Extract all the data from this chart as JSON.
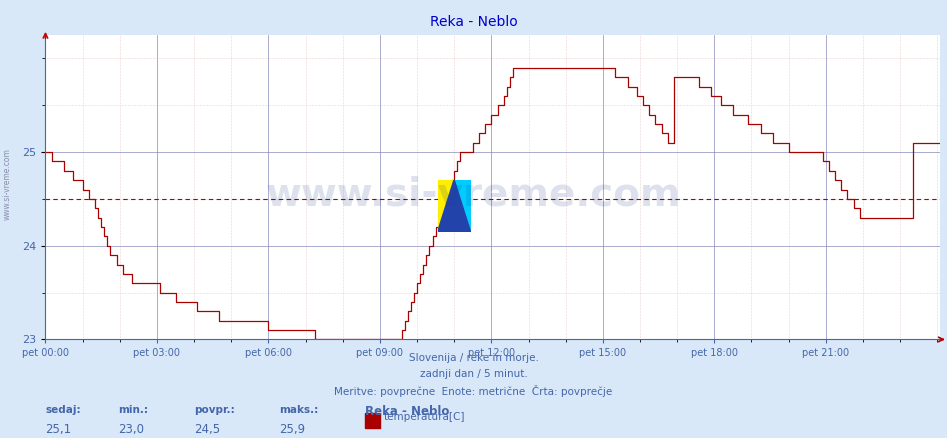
{
  "title": "Reka - Neblo",
  "bg_color": "#d8e8f8",
  "plot_bg_color": "#ffffff",
  "line_color": "#aa0000",
  "grid_color_major": "#8888bb",
  "grid_color_minor": "#ddaaaa",
  "avg_line_color": "#aa0000",
  "avg_value": 24.5,
  "y_min": 23.0,
  "y_max": 26.0,
  "y_ticks": [
    23,
    24,
    25
  ],
  "x_tick_labels": [
    "pet 00:00",
    "pet 03:00",
    "pet 06:00",
    "pet 09:00",
    "pet 12:00",
    "pet 15:00",
    "pet 18:00",
    "pet 21:00"
  ],
  "x_tick_positions": [
    0,
    36,
    72,
    108,
    144,
    180,
    216,
    252
  ],
  "footer_line1": "Slovenija / reke in morje.",
  "footer_line2": "zadnji dan / 5 minut.",
  "footer_line3": "Meritve: povprečne  Enote: metrične  Črta: povprečje",
  "footer_color": "#4466aa",
  "stats_labels": [
    "sedaj:",
    "min.:",
    "povpr.:",
    "maks.:"
  ],
  "stats_values": [
    "25,1",
    "23,0",
    "24,5",
    "25,9"
  ],
  "legend_title": "Reka - Neblo",
  "legend_label": "temperatura[C]",
  "legend_color": "#aa0000",
  "watermark_text": "www.si-vreme.com",
  "sidebar_text": "www.si-vreme.com",
  "n_points": 288,
  "temperatures": [
    25.0,
    25.0,
    24.9,
    24.9,
    24.9,
    24.9,
    24.8,
    24.8,
    24.8,
    24.7,
    24.7,
    24.7,
    24.6,
    24.6,
    24.5,
    24.5,
    24.4,
    24.3,
    24.2,
    24.1,
    24.0,
    23.9,
    23.9,
    23.8,
    23.8,
    23.7,
    23.7,
    23.7,
    23.6,
    23.6,
    23.6,
    23.6,
    23.6,
    23.6,
    23.6,
    23.6,
    23.6,
    23.5,
    23.5,
    23.5,
    23.5,
    23.5,
    23.4,
    23.4,
    23.4,
    23.4,
    23.4,
    23.4,
    23.4,
    23.3,
    23.3,
    23.3,
    23.3,
    23.3,
    23.3,
    23.3,
    23.2,
    23.2,
    23.2,
    23.2,
    23.2,
    23.2,
    23.2,
    23.2,
    23.2,
    23.2,
    23.2,
    23.2,
    23.2,
    23.2,
    23.2,
    23.2,
    23.1,
    23.1,
    23.1,
    23.1,
    23.1,
    23.1,
    23.1,
    23.1,
    23.1,
    23.1,
    23.1,
    23.1,
    23.1,
    23.1,
    23.1,
    23.0,
    23.0,
    23.0,
    23.0,
    23.0,
    23.0,
    23.0,
    23.0,
    23.0,
    23.0,
    23.0,
    23.0,
    23.0,
    23.0,
    23.0,
    23.0,
    23.0,
    23.0,
    23.0,
    23.0,
    23.0,
    23.0,
    23.0,
    23.0,
    23.0,
    23.0,
    23.0,
    23.0,
    23.1,
    23.2,
    23.3,
    23.4,
    23.5,
    23.6,
    23.7,
    23.8,
    23.9,
    24.0,
    24.1,
    24.2,
    24.3,
    24.4,
    24.5,
    24.6,
    24.7,
    24.8,
    24.9,
    25.0,
    25.0,
    25.0,
    25.0,
    25.1,
    25.1,
    25.2,
    25.2,
    25.3,
    25.3,
    25.4,
    25.4,
    25.5,
    25.5,
    25.6,
    25.7,
    25.8,
    25.9,
    25.9,
    25.9,
    25.9,
    25.9,
    25.9,
    25.9,
    25.9,
    25.9,
    25.9,
    25.9,
    25.9,
    25.9,
    25.9,
    25.9,
    25.9,
    25.9,
    25.9,
    25.9,
    25.9,
    25.9,
    25.9,
    25.9,
    25.9,
    25.9,
    25.9,
    25.9,
    25.9,
    25.9,
    25.9,
    25.9,
    25.9,
    25.9,
    25.8,
    25.8,
    25.8,
    25.8,
    25.7,
    25.7,
    25.7,
    25.6,
    25.6,
    25.5,
    25.5,
    25.4,
    25.4,
    25.3,
    25.3,
    25.2,
    25.2,
    25.1,
    25.1,
    25.8,
    25.8,
    25.8,
    25.8,
    25.8,
    25.8,
    25.8,
    25.8,
    25.7,
    25.7,
    25.7,
    25.7,
    25.6,
    25.6,
    25.6,
    25.5,
    25.5,
    25.5,
    25.5,
    25.4,
    25.4,
    25.4,
    25.4,
    25.4,
    25.3,
    25.3,
    25.3,
    25.3,
    25.2,
    25.2,
    25.2,
    25.2,
    25.1,
    25.1,
    25.1,
    25.1,
    25.1,
    25.0,
    25.0,
    25.0,
    25.0,
    25.0,
    25.0,
    25.0,
    25.0,
    25.0,
    25.0,
    25.0,
    24.9,
    24.9,
    24.8,
    24.8,
    24.7,
    24.7,
    24.6,
    24.6,
    24.5,
    24.5,
    24.4,
    24.4,
    24.3,
    24.3,
    24.3,
    24.3,
    24.3,
    24.3,
    24.3,
    24.3,
    24.3,
    24.3,
    24.3,
    24.3,
    24.3,
    24.3,
    24.3,
    24.3,
    24.3,
    25.1,
    25.1,
    25.1,
    25.1,
    25.1,
    25.1,
    25.1,
    25.1,
    25.1,
    25.1
  ]
}
